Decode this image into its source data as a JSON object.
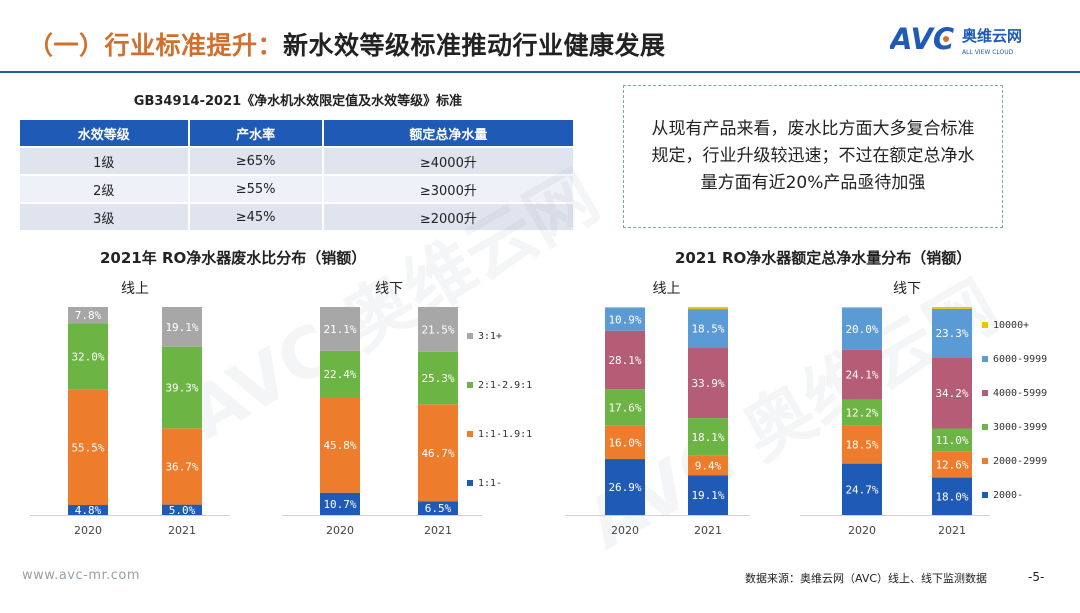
{
  "page": {
    "title_part1": "（一）行业标准提升：",
    "title_part2": "新水效等级标准推动行业健康发展",
    "logo_text": "AVC",
    "logo_cn": "奥维云网",
    "logo_en": "ALL VIEW CLOUD",
    "watermark": "AVC 奥维云网"
  },
  "standard": {
    "title": "GB34914-2021《净水机水效限定值及水效等级》标准",
    "headers": [
      "水效等级",
      "产水率",
      "额定总净水量"
    ],
    "rows": [
      [
        "1级",
        "≥65%",
        "≥4000升"
      ],
      [
        "2级",
        "≥55%",
        "≥3000升"
      ],
      [
        "3级",
        "≥45%",
        "≥2000升"
      ]
    ]
  },
  "note": {
    "text": "从现有产品来看，废水比方面大多复合标准规定，行业升级较迅速；不过在额定总净水量方面有近20%产品亟待加强"
  },
  "chart_titles": {
    "left": "2021年 RO净水器废水比分布（销额）",
    "right": "2021 RO净水器额定总净水量分布（销额）"
  },
  "chart_data": [
    {
      "type": "bar",
      "stacked": true,
      "title": "线上",
      "categories": [
        "2020",
        "2021"
      ],
      "series": [
        {
          "name": "1:1-",
          "color": "#1f5bb6",
          "values": [
            4.8,
            5.0
          ]
        },
        {
          "name": "1:1-1.9:1",
          "color": "#ee7c2d",
          "values": [
            55.5,
            36.7
          ]
        },
        {
          "name": "2:1-2.9:1",
          "color": "#6cb443",
          "values": [
            32.0,
            39.3
          ]
        },
        {
          "name": "3:1+",
          "color": "#a7a7a7",
          "values": [
            7.8,
            19.1
          ]
        }
      ],
      "labels": [
        [
          "4.8%",
          "5.0%"
        ],
        [
          "55.5%",
          "36.7%"
        ],
        [
          "32.0%",
          "39.3%"
        ],
        [
          "7.8%",
          "19.1%"
        ]
      ]
    },
    {
      "type": "bar",
      "stacked": true,
      "title": "线下",
      "categories": [
        "2020",
        "2021"
      ],
      "series": [
        {
          "name": "1:1-",
          "color": "#1f5bb6",
          "values": [
            10.7,
            6.5
          ]
        },
        {
          "name": "1:1-1.9:1",
          "color": "#ee7c2d",
          "values": [
            45.8,
            46.7
          ]
        },
        {
          "name": "2:1-2.9:1",
          "color": "#6cb443",
          "values": [
            22.4,
            25.3
          ]
        },
        {
          "name": "3:1+",
          "color": "#a7a7a7",
          "values": [
            21.1,
            21.5
          ]
        }
      ],
      "labels": [
        [
          "10.7%",
          "6.5%"
        ],
        [
          "45.8%",
          "46.7%"
        ],
        [
          "22.4%",
          "25.3%"
        ],
        [
          "21.1%",
          "21.5%"
        ]
      ],
      "legend": [
        "3:1+",
        "2:1-2.9:1",
        "1:1-1.9:1",
        "1:1-"
      ]
    },
    {
      "type": "bar",
      "stacked": true,
      "title": "线上",
      "categories": [
        "2020",
        "2021"
      ],
      "series": [
        {
          "name": "2000-",
          "color": "#1f5bb6",
          "values": [
            26.9,
            19.1
          ]
        },
        {
          "name": "2000-2999",
          "color": "#ee7c2d",
          "values": [
            16.0,
            9.4
          ]
        },
        {
          "name": "3000-3999",
          "color": "#6cb443",
          "values": [
            17.6,
            18.1
          ]
        },
        {
          "name": "4000-5999",
          "color": "#b55d77",
          "values": [
            28.1,
            33.9
          ]
        },
        {
          "name": "6000-9999",
          "color": "#5b9bd5",
          "values": [
            10.9,
            18.5
          ]
        },
        {
          "name": "10000+",
          "color": "#f2c100",
          "values": [
            0.5,
            1.0
          ]
        }
      ],
      "labels": [
        [
          "26.9%",
          "19.1%"
        ],
        [
          "16.0%",
          "9.4%"
        ],
        [
          "17.6%",
          "18.1%"
        ],
        [
          "28.1%",
          "33.9%"
        ],
        [
          "10.9%",
          "18.5%"
        ],
        [
          "",
          ""
        ]
      ]
    },
    {
      "type": "bar",
      "stacked": true,
      "title": "线下",
      "categories": [
        "2020",
        "2021"
      ],
      "series": [
        {
          "name": "2000-",
          "color": "#1f5bb6",
          "values": [
            24.7,
            18.0
          ]
        },
        {
          "name": "2000-2999",
          "color": "#ee7c2d",
          "values": [
            18.5,
            12.6
          ]
        },
        {
          "name": "3000-3999",
          "color": "#6cb443",
          "values": [
            12.2,
            11.0
          ]
        },
        {
          "name": "4000-5999",
          "color": "#b55d77",
          "values": [
            24.1,
            34.2
          ]
        },
        {
          "name": "6000-9999",
          "color": "#5b9bd5",
          "values": [
            20.0,
            23.3
          ]
        },
        {
          "name": "10000+",
          "color": "#f2c100",
          "values": [
            0.5,
            0.9
          ]
        }
      ],
      "labels": [
        [
          "24.7%",
          "18.0%"
        ],
        [
          "18.5%",
          "12.6%"
        ],
        [
          "12.2%",
          "11.0%"
        ],
        [
          "24.1%",
          "34.2%"
        ],
        [
          "20.0%",
          "23.3%"
        ],
        [
          "",
          ""
        ]
      ],
      "legend": [
        "10000+",
        "6000-9999",
        "4000-5999",
        "3000-3999",
        "2000-2999",
        "2000-"
      ]
    }
  ],
  "footer": {
    "website": "www.avc-mr.com",
    "source": "数据来源：奥维云网（AVC）线上、线下监测数据",
    "page_num": "-5-"
  }
}
